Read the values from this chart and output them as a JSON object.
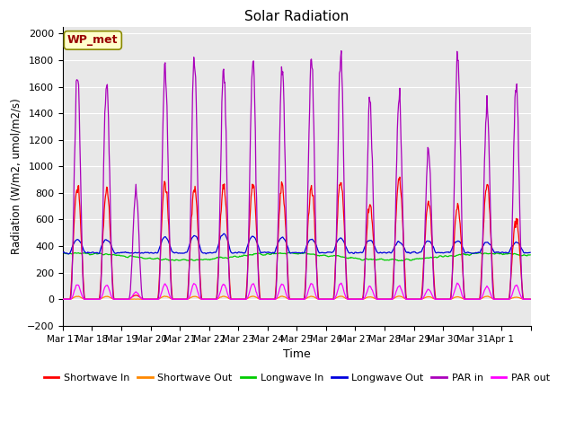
{
  "title": "Solar Radiation",
  "xlabel": "Time",
  "ylabel": "Radiation (W/m2, umol/m2/s)",
  "ylim": [
    -200,
    2050
  ],
  "yticks": [
    -200,
    0,
    200,
    400,
    600,
    800,
    1000,
    1200,
    1400,
    1600,
    1800,
    2000
  ],
  "n_days": 16,
  "series_colors": {
    "sw_in": "#ff0000",
    "sw_out": "#ff8800",
    "lw_in": "#00cc00",
    "lw_out": "#0000dd",
    "par_in": "#aa00bb",
    "par_out": "#ff00ff"
  },
  "legend_labels": [
    "Shortwave In",
    "Shortwave Out",
    "Longwave In",
    "Longwave Out",
    "PAR in",
    "PAR out"
  ],
  "legend_colors": [
    "#ff0000",
    "#ff8800",
    "#00cc00",
    "#0000dd",
    "#aa00bb",
    "#ff00ff"
  ],
  "station_label": "WP_met",
  "bg_color": "#e8e8e8",
  "sw_in_peaks": [
    860,
    820,
    30,
    890,
    850,
    860,
    860,
    860,
    860,
    900,
    720,
    900,
    720,
    700,
    870,
    600
  ],
  "par_in_peaks": [
    1710,
    1660,
    820,
    1750,
    1760,
    1760,
    1760,
    1780,
    1800,
    1840,
    1470,
    1540,
    1120,
    1840,
    1460,
    1600
  ],
  "lw_out_base": 350,
  "lw_out_day_add": [
    100,
    100,
    0,
    115,
    130,
    140,
    125,
    115,
    105,
    110,
    95,
    80,
    90,
    90,
    80,
    80
  ],
  "lw_in_base": 320,
  "lw_in_amp": 25,
  "sw_out_scale": 0.025,
  "par_out_scale": 0.065,
  "xtick_labels": [
    "Mar 17",
    "Mar 18",
    "Mar 19",
    "Mar 20",
    "Mar 21",
    "Mar 22",
    "Mar 23",
    "Mar 24",
    "Mar 25",
    "Mar 26",
    "Mar 27",
    "Mar 28",
    "Mar 29",
    "Mar 30",
    "Mar 31",
    "Apr 1"
  ],
  "figsize": [
    6.4,
    4.8
  ],
  "dpi": 100
}
